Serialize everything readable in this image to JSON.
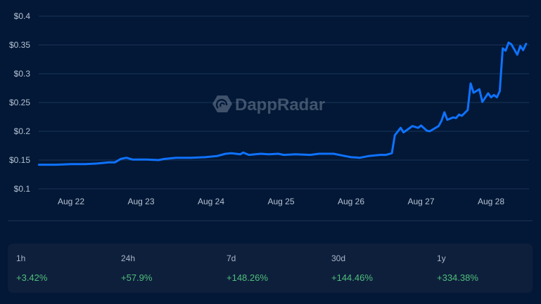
{
  "watermark": "DappRadar",
  "chart_data": {
    "type": "line",
    "title": "",
    "xlabel": "",
    "ylabel": "",
    "ylim": [
      0.1,
      0.4
    ],
    "yticks": [
      "$0.1",
      "$0.15",
      "$0.2",
      "$0.25",
      "$0.3",
      "$0.35",
      "$0.4"
    ],
    "ytick_values": [
      0.1,
      0.15,
      0.2,
      0.25,
      0.3,
      0.35,
      0.4
    ],
    "xticks": [
      "Aug 22",
      "Aug 23",
      "Aug 24",
      "Aug 25",
      "Aug 26",
      "Aug 27",
      "Aug 28"
    ],
    "grid": true,
    "line_color": "#0f72ff",
    "series": [
      {
        "points": [
          [
            "Aug 21 13:00",
            0.142
          ],
          [
            "Aug 21 19:00",
            0.142
          ],
          [
            "Aug 22 00:00",
            0.143
          ],
          [
            "Aug 22 05:00",
            0.143
          ],
          [
            "Aug 22 09:00",
            0.144
          ],
          [
            "Aug 22 13:00",
            0.146
          ],
          [
            "Aug 22 15:00",
            0.146
          ],
          [
            "Aug 22 17:00",
            0.152
          ],
          [
            "Aug 22 19:00",
            0.154
          ],
          [
            "Aug 22 21:00",
            0.151
          ],
          [
            "Aug 23 02:00",
            0.151
          ],
          [
            "Aug 23 06:00",
            0.15
          ],
          [
            "Aug 23 08:00",
            0.152
          ],
          [
            "Aug 23 12:00",
            0.154
          ],
          [
            "Aug 23 17:00",
            0.154
          ],
          [
            "Aug 23 22:00",
            0.155
          ],
          [
            "Aug 24 02:00",
            0.157
          ],
          [
            "Aug 24 05:00",
            0.161
          ],
          [
            "Aug 24 07:00",
            0.162
          ],
          [
            "Aug 24 10:00",
            0.16
          ],
          [
            "Aug 24 11:00",
            0.163
          ],
          [
            "Aug 24 13:00",
            0.159
          ],
          [
            "Aug 24 17:00",
            0.161
          ],
          [
            "Aug 24 20:00",
            0.16
          ],
          [
            "Aug 24 23:00",
            0.161
          ],
          [
            "Aug 25 01:00",
            0.159
          ],
          [
            "Aug 25 05:00",
            0.16
          ],
          [
            "Aug 25 10:00",
            0.159
          ],
          [
            "Aug 25 13:00",
            0.161
          ],
          [
            "Aug 25 18:00",
            0.161
          ],
          [
            "Aug 25 22:00",
            0.157
          ],
          [
            "Aug 26 00:00",
            0.155
          ],
          [
            "Aug 26 03:00",
            0.154
          ],
          [
            "Aug 26 06:00",
            0.157
          ],
          [
            "Aug 26 10:00",
            0.159
          ],
          [
            "Aug 26 12:00",
            0.159
          ],
          [
            "Aug 26 14:00",
            0.162
          ],
          [
            "Aug 26 15:00",
            0.193
          ],
          [
            "Aug 26 17:00",
            0.206
          ],
          [
            "Aug 26 18:00",
            0.198
          ],
          [
            "Aug 26 21:00",
            0.209
          ],
          [
            "Aug 26 23:00",
            0.206
          ],
          [
            "Aug 27 00:00",
            0.21
          ],
          [
            "Aug 27 02:00",
            0.201
          ],
          [
            "Aug 27 03:00",
            0.2
          ],
          [
            "Aug 27 06:00",
            0.209
          ],
          [
            "Aug 27 07:00",
            0.218
          ],
          [
            "Aug 27 08:00",
            0.233
          ],
          [
            "Aug 27 09:00",
            0.22
          ],
          [
            "Aug 27 11:00",
            0.224
          ],
          [
            "Aug 27 12:00",
            0.223
          ],
          [
            "Aug 27 13:00",
            0.229
          ],
          [
            "Aug 27 14:00",
            0.227
          ],
          [
            "Aug 27 16:00",
            0.237
          ],
          [
            "Aug 27 17:00",
            0.283
          ],
          [
            "Aug 27 18:00",
            0.267
          ],
          [
            "Aug 27 20:00",
            0.273
          ],
          [
            "Aug 27 21:00",
            0.251
          ],
          [
            "Aug 27 23:00",
            0.266
          ],
          [
            "Aug 28 00:00",
            0.259
          ],
          [
            "Aug 28 01:00",
            0.263
          ],
          [
            "Aug 28 02:00",
            0.259
          ],
          [
            "Aug 28 03:00",
            0.27
          ],
          [
            "Aug 28 04:00",
            0.344
          ],
          [
            "Aug 28 05:00",
            0.34
          ],
          [
            "Aug 28 06:00",
            0.354
          ],
          [
            "Aug 28 07:00",
            0.351
          ],
          [
            "Aug 28 09:00",
            0.333
          ],
          [
            "Aug 28 10:00",
            0.348
          ],
          [
            "Aug 28 11:00",
            0.341
          ],
          [
            "Aug 28 12:00",
            0.352
          ]
        ]
      }
    ]
  },
  "stats": [
    {
      "label": "1h",
      "value": "+3.42%"
    },
    {
      "label": "24h",
      "value": "+57.9%"
    },
    {
      "label": "7d",
      "value": "+148.26%"
    },
    {
      "label": "30d",
      "value": "+144.46%"
    },
    {
      "label": "1y",
      "value": "+334.38%"
    }
  ],
  "colors": {
    "positive": "#4fbf7a",
    "background": "#021836",
    "panel": "#0e1f3c"
  }
}
